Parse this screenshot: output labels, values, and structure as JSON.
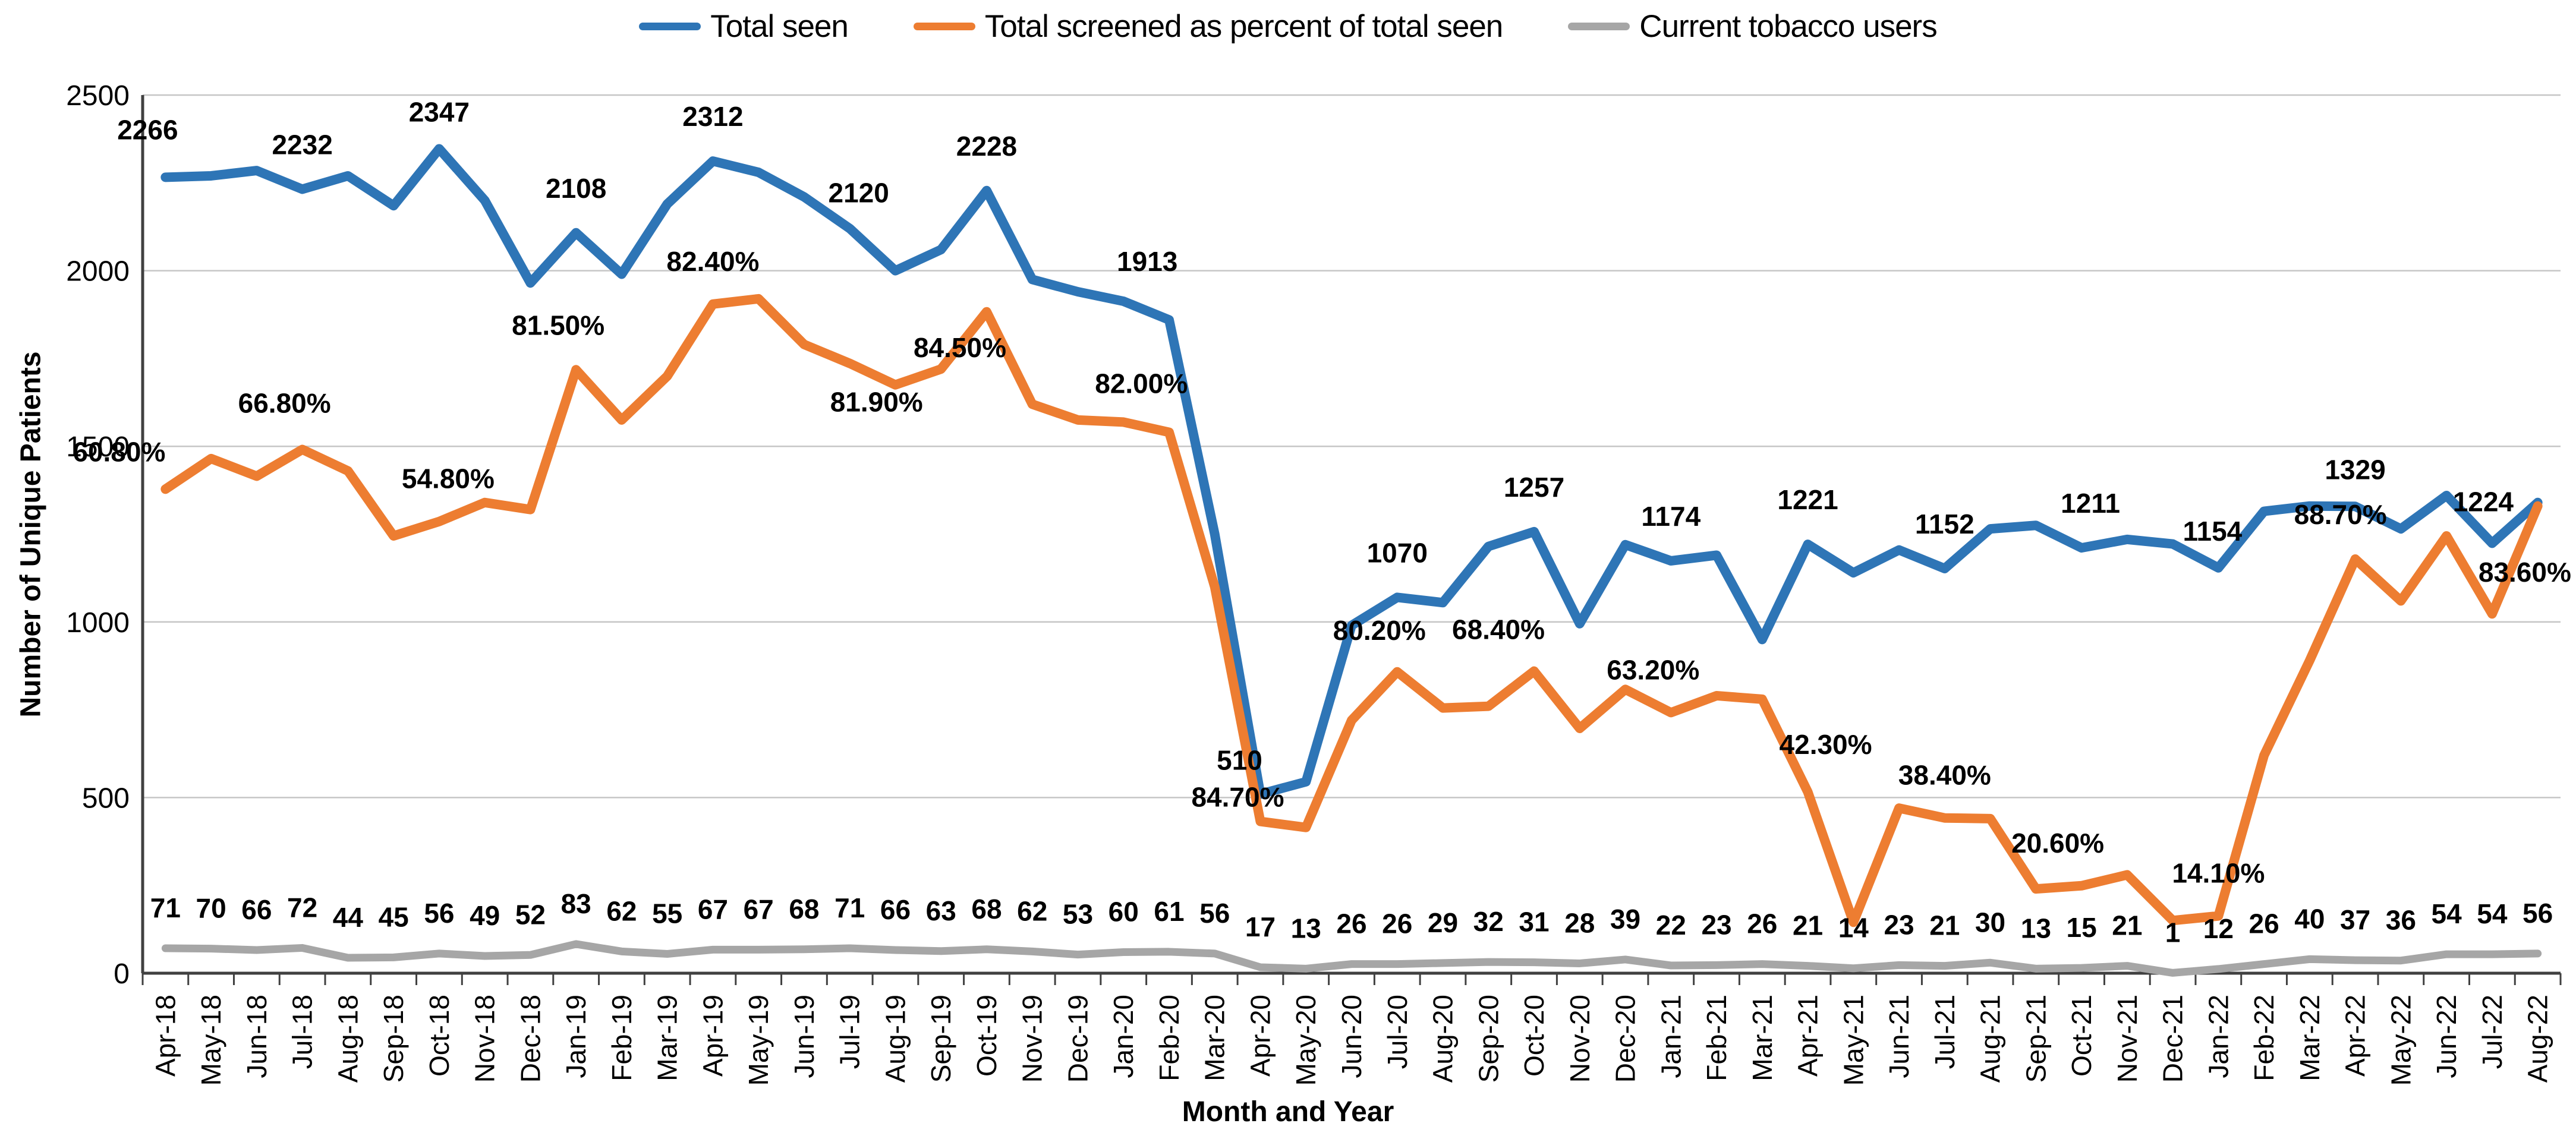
{
  "chart_data": {
    "type": "line",
    "title": "",
    "xlabel": "Month and Year",
    "ylabel": "Number of Unique Patients",
    "ylim": [
      0,
      2500
    ],
    "y_ticks": [
      0,
      500,
      1000,
      1500,
      2000,
      2500
    ],
    "grid": "horizontal",
    "legend_position": "top",
    "categories": [
      "Apr-18",
      "May-18",
      "Jun-18",
      "Jul-18",
      "Aug-18",
      "Sep-18",
      "Oct-18",
      "Nov-18",
      "Dec-18",
      "Jan-19",
      "Feb-19",
      "Mar-19",
      "Apr-19",
      "May-19",
      "Jun-19",
      "Jul-19",
      "Aug-19",
      "Sep-19",
      "Oct-19",
      "Nov-19",
      "Dec-19",
      "Jan-20",
      "Feb-20",
      "Mar-20",
      "Apr-20",
      "May-20",
      "Jun-20",
      "Jul-20",
      "Aug-20",
      "Sep-20",
      "Oct-20",
      "Nov-20",
      "Dec-20",
      "Jan-21",
      "Feb-21",
      "Mar-21",
      "Apr-21",
      "May-21",
      "Jun-21",
      "Jul-21",
      "Aug-21",
      "Sep-21",
      "Oct-21",
      "Nov-21",
      "Dec-21",
      "Jan-22",
      "Feb-22",
      "Mar-22",
      "Apr-22",
      "May-22",
      "Jun-22",
      "Jul-22",
      "Aug-22"
    ],
    "series": [
      {
        "name": "Total seen",
        "color": "#2E75B6",
        "values": [
          2266,
          2270,
          2285,
          2232,
          2270,
          2185,
          2347,
          2200,
          1965,
          2108,
          1990,
          2190,
          2312,
          2280,
          2210,
          2120,
          2000,
          2060,
          2228,
          1975,
          1940,
          1913,
          1860,
          1250,
          510,
          545,
          990,
          1070,
          1055,
          1215,
          1257,
          995,
          1220,
          1174,
          1190,
          950,
          1221,
          1140,
          1205,
          1152,
          1265,
          1275,
          1211,
          1235,
          1222,
          1154,
          1315,
          1330,
          1329,
          1265,
          1360,
          1224,
          1340
        ],
        "point_labels": {
          "0": "2266",
          "3": "2232",
          "6": "2347",
          "9": "2108",
          "12": "2312",
          "15": "2120",
          "18": "2228",
          "21": "1913",
          "24": "510",
          "27": "1070",
          "30": "1257",
          "33": "1174",
          "36": "1221",
          "39": "1152",
          "42": "1211",
          "45": "1154",
          "48": "1329",
          "51": "1224"
        }
      },
      {
        "name": "Total screened as percent of total seen",
        "color": "#ED7D31",
        "values": [
          1378,
          1465,
          1415,
          1491,
          1430,
          1245,
          1286,
          1340,
          1320,
          1718,
          1575,
          1700,
          1905,
          1920,
          1790,
          1736,
          1675,
          1720,
          1883,
          1620,
          1575,
          1569,
          1540,
          1100,
          432,
          415,
          720,
          858,
          755,
          760,
          860,
          697,
          808,
          742,
          790,
          780,
          516,
          145,
          470,
          442,
          440,
          240,
          249,
          280,
          150,
          163,
          620,
          890,
          1179,
          1060,
          1245,
          1023,
          1330
        ],
        "point_labels": {
          "0": "60.80%",
          "3": "66.80%",
          "6": "54.80%",
          "9": "81.50%",
          "12": "82.40%",
          "15": "81.90%",
          "18": "84.50%",
          "21": "82.00%",
          "24": "84.70%",
          "27": "80.20%",
          "30": "68.40%",
          "33": "63.20%",
          "36": "42.30%",
          "39": "38.40%",
          "42": "20.60%",
          "45": "14.10%",
          "48": "88.70%",
          "51": "83.60%"
        }
      },
      {
        "name": "Current tobacco users",
        "color": "#A6A6A6",
        "values": [
          71,
          70,
          66,
          72,
          44,
          45,
          56,
          49,
          52,
          83,
          62,
          55,
          67,
          67,
          68,
          71,
          66,
          63,
          68,
          62,
          53,
          60,
          61,
          56,
          17,
          13,
          26,
          26,
          29,
          32,
          31,
          28,
          39,
          22,
          23,
          26,
          21,
          14,
          23,
          21,
          30,
          13,
          15,
          21,
          1,
          12,
          26,
          40,
          37,
          36,
          54,
          54,
          56
        ],
        "label_all_points": true
      }
    ]
  }
}
